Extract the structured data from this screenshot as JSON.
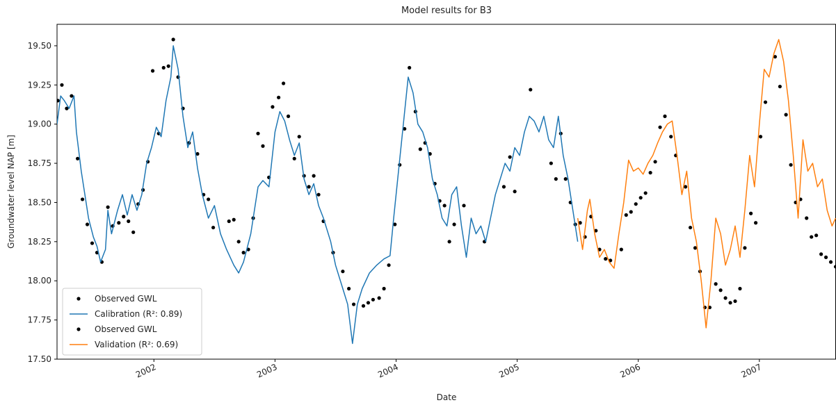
{
  "chart_data": {
    "type": "line",
    "title": "Model results for B3",
    "x_label": "Date",
    "y_label": "Groundwater level NAP [m]",
    "xlim": [
      2001.2,
      2007.63
    ],
    "ylim": [
      17.5,
      19.637
    ],
    "xticks": [
      2002,
      2003,
      2004,
      2005,
      2006,
      2007
    ],
    "yticks": [
      {
        "value": 17.5,
        "label": "17.50"
      },
      {
        "value": 17.75,
        "label": "17.75"
      },
      {
        "value": 18.0,
        "label": "18.00"
      },
      {
        "value": 18.25,
        "label": "18.25"
      },
      {
        "value": 18.5,
        "label": "18.50"
      },
      {
        "value": 18.75,
        "label": "18.75"
      },
      {
        "value": 19.0,
        "label": "19.00"
      },
      {
        "value": 19.25,
        "label": "19.25"
      },
      {
        "value": 19.5,
        "label": "19.50"
      }
    ],
    "legend": "lower left",
    "series": [
      {
        "name": "Observed GWL",
        "color": "#000000",
        "style": "marker",
        "x": [
          2001.207,
          2001.24,
          2001.28,
          2001.32,
          2001.37,
          2001.41,
          2001.45,
          2001.49,
          2001.53,
          2001.57,
          2001.62,
          2001.66,
          2001.71,
          2001.75,
          2001.79,
          2001.83,
          2001.87,
          2001.91,
          2001.95,
          2001.99,
          2002.04,
          2002.08,
          2002.12,
          2002.16,
          2002.2,
          2002.24,
          2002.29,
          2002.36,
          2002.41,
          2002.45,
          2002.49,
          2002.62,
          2002.66,
          2002.7,
          2002.74,
          2002.78,
          2002.82,
          2002.86,
          2002.9,
          2002.95,
          2002.98,
          2003.03,
          2003.07,
          2003.11,
          2003.16,
          2003.2,
          2003.24,
          2003.28,
          2003.32,
          2003.36,
          2003.4,
          2003.48,
          2003.56,
          2003.61,
          2003.65,
          2003.73,
          2003.77,
          2003.81,
          2003.86,
          2003.9,
          2003.94,
          2003.99,
          2004.03,
          2004.07,
          2004.11,
          2004.16,
          2004.2,
          2004.24,
          2004.28,
          2004.32,
          2004.36,
          2004.4,
          2004.44,
          2004.48,
          2004.56,
          2004.73,
          2004.89,
          2004.94,
          2004.98,
          2005.11,
          2005.28,
          2005.32,
          2005.36,
          2005.4,
          2005.44,
          2005.48
        ],
        "values": [
          19.15,
          19.25,
          19.1,
          19.18,
          18.78,
          18.52,
          18.36,
          18.24,
          18.18,
          18.12,
          18.47,
          18.35,
          18.37,
          18.41,
          18.38,
          18.31,
          18.49,
          18.58,
          18.76,
          19.34,
          18.94,
          19.36,
          19.37,
          19.54,
          19.3,
          19.1,
          18.88,
          18.81,
          18.55,
          18.52,
          18.34,
          18.38,
          18.39,
          18.25,
          18.18,
          18.2,
          18.4,
          18.94,
          18.86,
          18.66,
          19.11,
          19.17,
          19.26,
          19.05,
          18.78,
          18.92,
          18.67,
          18.6,
          18.67,
          18.55,
          18.38,
          18.18,
          18.06,
          17.95,
          17.85,
          17.84,
          17.86,
          17.88,
          17.89,
          17.95,
          18.1,
          18.36,
          18.74,
          18.97,
          19.36,
          19.08,
          18.84,
          18.88,
          18.81,
          18.62,
          18.51,
          18.48,
          18.25,
          18.36,
          18.48,
          18.25,
          18.6,
          18.79,
          18.57,
          19.22,
          18.75,
          18.65,
          18.94,
          18.65,
          18.5,
          18.36
        ]
      },
      {
        "name": "Calibration (R²: 0.89)",
        "color": "#1f77b4",
        "style": "line",
        "x": [
          2001.2,
          2001.23,
          2001.26,
          2001.3,
          2001.34,
          2001.36,
          2001.4,
          2001.43,
          2001.46,
          2001.5,
          2001.53,
          2001.56,
          2001.6,
          2001.62,
          2001.65,
          2001.7,
          2001.74,
          2001.78,
          2001.82,
          2001.86,
          2001.9,
          2001.94,
          2001.98,
          2002.02,
          2002.06,
          2002.1,
          2002.14,
          2002.16,
          2002.2,
          2002.24,
          2002.28,
          2002.32,
          2002.36,
          2002.4,
          2002.45,
          2002.5,
          2002.55,
          2002.6,
          2002.66,
          2002.7,
          2002.74,
          2002.8,
          2002.86,
          2002.9,
          2002.95,
          2003.0,
          2003.04,
          2003.08,
          2003.12,
          2003.16,
          2003.2,
          2003.24,
          2003.28,
          2003.32,
          2003.36,
          2003.4,
          2003.46,
          2003.5,
          2003.56,
          2003.6,
          2003.64,
          2003.68,
          2003.72,
          2003.78,
          2003.84,
          2003.9,
          2003.95,
          2003.98,
          2004.02,
          2004.06,
          2004.1,
          2004.14,
          2004.18,
          2004.22,
          2004.26,
          2004.3,
          2004.34,
          2004.38,
          2004.42,
          2004.46,
          2004.5,
          2004.54,
          2004.58,
          2004.62,
          2004.66,
          2004.7,
          2004.74,
          2004.78,
          2004.82,
          2004.86,
          2004.9,
          2004.94,
          2004.98,
          2005.02,
          2005.06,
          2005.1,
          2005.14,
          2005.18,
          2005.22,
          2005.26,
          2005.3,
          2005.34,
          2005.38,
          2005.42,
          2005.46,
          2005.5
        ],
        "values": [
          19.0,
          19.18,
          19.15,
          19.1,
          19.18,
          18.95,
          18.7,
          18.55,
          18.4,
          18.28,
          18.22,
          18.12,
          18.2,
          18.45,
          18.3,
          18.45,
          18.55,
          18.42,
          18.55,
          18.45,
          18.55,
          18.75,
          18.85,
          18.98,
          18.92,
          19.15,
          19.3,
          19.5,
          19.35,
          19.05,
          18.85,
          18.95,
          18.72,
          18.55,
          18.4,
          18.48,
          18.3,
          18.2,
          18.1,
          18.05,
          18.12,
          18.3,
          18.6,
          18.64,
          18.6,
          18.95,
          19.08,
          19.02,
          18.9,
          18.8,
          18.88,
          18.65,
          18.55,
          18.62,
          18.48,
          18.4,
          18.25,
          18.1,
          17.95,
          17.85,
          17.6,
          17.85,
          17.95,
          18.05,
          18.1,
          18.14,
          18.16,
          18.4,
          18.7,
          19.0,
          19.3,
          19.2,
          19.0,
          18.95,
          18.85,
          18.65,
          18.55,
          18.4,
          18.35,
          18.55,
          18.6,
          18.35,
          18.15,
          18.4,
          18.3,
          18.35,
          18.25,
          18.4,
          18.55,
          18.65,
          18.75,
          18.7,
          18.85,
          18.8,
          18.95,
          19.05,
          19.02,
          18.95,
          19.05,
          18.9,
          18.85,
          19.05,
          18.8,
          18.65,
          18.45,
          18.25
        ]
      },
      {
        "name": "Observed GWL",
        "color": "#000000",
        "style": "marker",
        "x": [
          2005.52,
          2005.56,
          2005.61,
          2005.65,
          2005.68,
          2005.73,
          2005.77,
          2005.86,
          2005.9,
          2005.94,
          2005.98,
          2006.02,
          2006.06,
          2006.1,
          2006.14,
          2006.18,
          2006.22,
          2006.27,
          2006.31,
          2006.39,
          2006.43,
          2006.47,
          2006.51,
          2006.55,
          2006.59,
          2006.64,
          2006.68,
          2006.72,
          2006.76,
          2006.8,
          2006.84,
          2006.88,
          2006.93,
          2006.97,
          2007.01,
          2007.05,
          2007.13,
          2007.17,
          2007.22,
          2007.26,
          2007.3,
          2007.34,
          2007.39,
          2007.43,
          2007.47,
          2007.51,
          2007.55,
          2007.59,
          2007.63
        ],
        "values": [
          18.37,
          18.28,
          18.41,
          18.32,
          18.2,
          18.14,
          18.13,
          18.2,
          18.42,
          18.44,
          18.49,
          18.53,
          18.56,
          18.69,
          18.76,
          18.98,
          19.05,
          18.92,
          18.8,
          18.6,
          18.34,
          18.21,
          18.06,
          17.83,
          17.83,
          17.98,
          17.94,
          17.89,
          17.86,
          17.87,
          17.95,
          18.21,
          18.43,
          18.37,
          18.92,
          19.14,
          19.43,
          19.24,
          19.06,
          18.74,
          18.5,
          18.52,
          18.4,
          18.28,
          18.29,
          18.17,
          18.15,
          18.12,
          18.09
        ]
      },
      {
        "name": "Validation (R²: 0.69)",
        "color": "#ff7f0e",
        "style": "line",
        "x": [
          2005.5,
          2005.54,
          2005.58,
          2005.6,
          2005.64,
          2005.68,
          2005.72,
          2005.76,
          2005.8,
          2005.84,
          2005.88,
          2005.92,
          2005.96,
          2006.0,
          2006.04,
          2006.08,
          2006.12,
          2006.16,
          2006.2,
          2006.24,
          2006.28,
          2006.32,
          2006.36,
          2006.4,
          2006.44,
          2006.48,
          2006.52,
          2006.54,
          2006.56,
          2006.6,
          2006.64,
          2006.68,
          2006.72,
          2006.76,
          2006.8,
          2006.84,
          2006.88,
          2006.92,
          2006.96,
          2007.0,
          2007.04,
          2007.08,
          2007.12,
          2007.16,
          2007.2,
          2007.24,
          2007.28,
          2007.32,
          2007.36,
          2007.4,
          2007.44,
          2007.48,
          2007.52,
          2007.56,
          2007.6,
          2007.63
        ],
        "values": [
          18.4,
          18.2,
          18.45,
          18.52,
          18.3,
          18.15,
          18.2,
          18.12,
          18.08,
          18.3,
          18.5,
          18.77,
          18.7,
          18.72,
          18.68,
          18.75,
          18.8,
          18.88,
          18.95,
          19.0,
          19.02,
          18.8,
          18.55,
          18.7,
          18.4,
          18.25,
          18.0,
          17.85,
          17.7,
          18.0,
          18.4,
          18.3,
          18.1,
          18.2,
          18.35,
          18.15,
          18.45,
          18.8,
          18.6,
          19.0,
          19.35,
          19.3,
          19.45,
          19.54,
          19.4,
          19.15,
          18.8,
          18.4,
          18.9,
          18.7,
          18.75,
          18.6,
          18.65,
          18.45,
          18.35,
          18.4
        ]
      }
    ]
  }
}
